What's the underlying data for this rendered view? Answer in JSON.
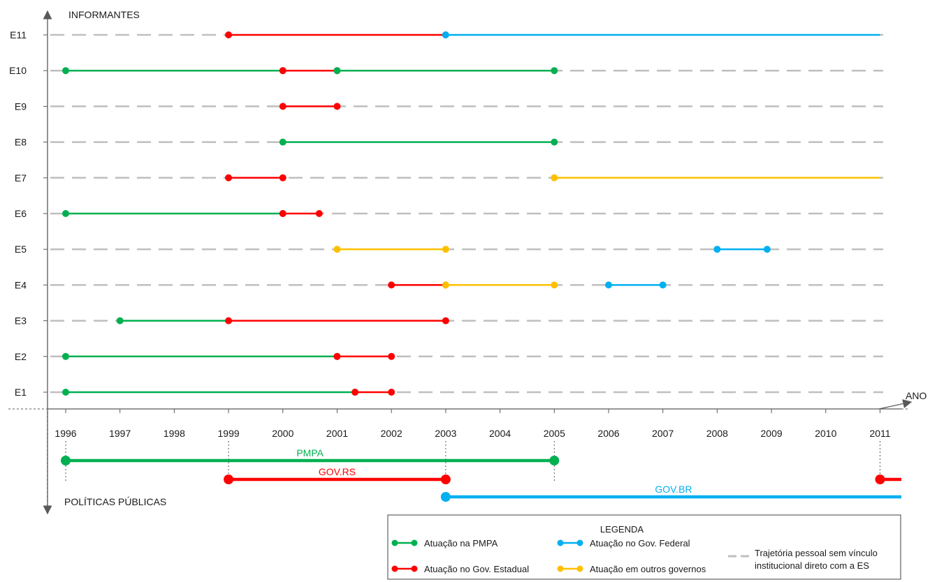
{
  "axes": {
    "y_label": "INFORMANTES",
    "x_label": "ANO",
    "bottom_label": "POLÍTICAS PÚBLICAS"
  },
  "colors": {
    "pmpa": "#00b050",
    "estadual": "#ff0000",
    "federal": "#00b0f0",
    "outros": "#ffc000",
    "dash": "#bfbfbf",
    "axis": "#595959"
  },
  "years": [
    "1996",
    "1997",
    "1998",
    "1999",
    "2000",
    "2001",
    "2002",
    "2003",
    "2004",
    "2005",
    "2006",
    "2007",
    "2008",
    "2009",
    "2010",
    "2011"
  ],
  "rows": [
    {
      "label": "E11",
      "segments": [
        {
          "kind": "estadual",
          "from": 1999.0,
          "to": 2003.0
        },
        {
          "kind": "federal",
          "from": 2003.0,
          "to": 2011.0,
          "no_end_dot": true
        }
      ]
    },
    {
      "label": "E10",
      "segments": [
        {
          "kind": "pmpa",
          "from": 1996.0,
          "to": 2000.0
        },
        {
          "kind": "estadual",
          "from": 2000.0,
          "to": 2001.0
        },
        {
          "kind": "pmpa",
          "from": 2001.0,
          "to": 2005.0
        }
      ]
    },
    {
      "label": "E9",
      "segments": [
        {
          "kind": "estadual",
          "from": 2000.0,
          "to": 2001.0
        }
      ]
    },
    {
      "label": "E8",
      "segments": [
        {
          "kind": "pmpa",
          "from": 2000.0,
          "to": 2005.0
        }
      ]
    },
    {
      "label": "E7",
      "segments": [
        {
          "kind": "estadual",
          "from": 1999.0,
          "to": 2000.0
        },
        {
          "kind": "outros",
          "from": 2005.0,
          "to": 2011.0,
          "no_end_dot": true
        }
      ]
    },
    {
      "label": "E6",
      "segments": [
        {
          "kind": "pmpa",
          "from": 1996.0,
          "to": 2000.0
        },
        {
          "kind": "estadual",
          "from": 2000.0,
          "to": 2000.67
        }
      ]
    },
    {
      "label": "E5",
      "segments": [
        {
          "kind": "outros",
          "from": 2001.0,
          "to": 2003.0
        },
        {
          "kind": "federal",
          "from": 2008.0,
          "to": 2008.92
        }
      ]
    },
    {
      "label": "E4",
      "segments": [
        {
          "kind": "estadual",
          "from": 2002.0,
          "to": 2003.0
        },
        {
          "kind": "outros",
          "from": 2003.0,
          "to": 2005.0
        },
        {
          "kind": "federal",
          "from": 2006.0,
          "to": 2007.0
        }
      ]
    },
    {
      "label": "E3",
      "segments": [
        {
          "kind": "pmpa",
          "from": 1997.0,
          "to": 1999.0
        },
        {
          "kind": "estadual",
          "from": 1999.0,
          "to": 2003.0
        }
      ]
    },
    {
      "label": "E2",
      "segments": [
        {
          "kind": "pmpa",
          "from": 1996.0,
          "to": 2001.0
        },
        {
          "kind": "estadual",
          "from": 2001.0,
          "to": 2002.0
        }
      ]
    },
    {
      "label": "E1",
      "segments": [
        {
          "kind": "pmpa",
          "from": 1996.0,
          "to": 2001.33
        },
        {
          "kind": "estadual",
          "from": 2001.33,
          "to": 2002.0
        }
      ]
    }
  ],
  "bands": [
    {
      "label": "PMPA",
      "kind": "pmpa",
      "from": 1996.0,
      "to": 2005.0,
      "end_dot": true
    },
    {
      "label": "GOV.RS",
      "kind": "estadual",
      "from": 1999.0,
      "to": 2003.0,
      "end_dot": true
    },
    {
      "label": "GOV.RS",
      "kind": "estadual",
      "from": 2011.0,
      "to": 2011.4,
      "end_dot": false,
      "no_text": true
    },
    {
      "label": "GOV.BR",
      "kind": "federal",
      "from": 2003.0,
      "to": 2013.8,
      "end_dot": false
    }
  ],
  "legend": {
    "title": "LEGENDA",
    "items": [
      {
        "kind": "pmpa",
        "text": "Atuação na PMPA"
      },
      {
        "kind": "federal",
        "text": "Atuação no Gov. Federal"
      },
      {
        "kind": "estadual",
        "text": "Atuação no Gov. Estadual"
      },
      {
        "kind": "outros",
        "text": "Atuação em outros governos"
      }
    ],
    "dash_text_1": "Trajetória pessoal sem vínculo",
    "dash_text_2": "institucional direto com a ES"
  }
}
